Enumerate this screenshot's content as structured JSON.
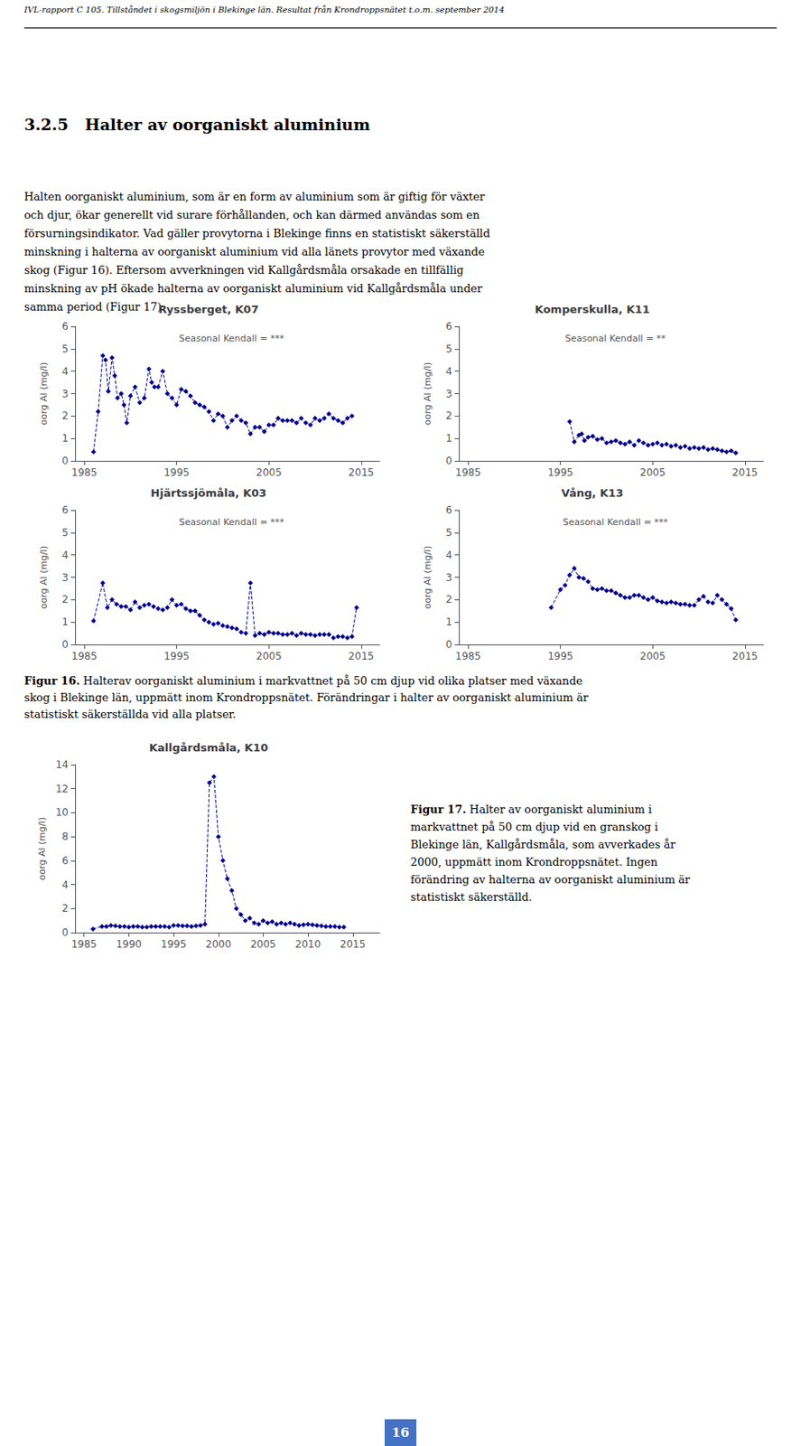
{
  "page_header": "IVL-rapport C 105. Tillståndet i skogsmiljön i Blekinge län. Resultat från Krondroppsnätet t.o.m. september 2014",
  "section_title": "3.2.5   Halter av oorganiskt aluminium",
  "body_lines": [
    "Halten oorganiskt aluminium, som är en form av aluminium som är giftig för växter",
    "och djur, ökar generellt vid surare förhållanden, och kan därmed användas som en",
    "försurningsindikator. Vad gäller provytorna i Blekinge finns en statistiskt säkerställd",
    "minskning i halterna av oorganiskt aluminium vid alla länets provytor med växande",
    "skog (Figur 16). Eftersom avverkningen vid Kallgårdsmåla orsakade en tillfällig",
    "minskning av pH ökade halterna av oorganiskt aluminium vid Kallgårdsmåla under",
    "samma period (Figur 17)."
  ],
  "chart_data": [
    {
      "type": "line",
      "title": "Ryssberget, K07",
      "annotation": "Seasonal Kendall = ***",
      "ylabel": "oorg Al (mg/l)",
      "color": "#00008B",
      "marker": "diamond",
      "line_style": "dashed",
      "grid": false,
      "xlim": [
        1984,
        2017
      ],
      "xticks": [
        1985,
        1995,
        2005,
        2015
      ],
      "ylim": [
        0,
        6
      ],
      "yticks": [
        0,
        1,
        2,
        3,
        4,
        5,
        6
      ],
      "x": [
        1986.0,
        1986.5,
        1987.0,
        1987.3,
        1987.6,
        1988.0,
        1988.3,
        1988.6,
        1989.0,
        1989.3,
        1989.6,
        1990.0,
        1990.5,
        1991.0,
        1991.5,
        1992.0,
        1992.3,
        1992.6,
        1993.0,
        1993.5,
        1994.0,
        1994.5,
        1995.0,
        1995.5,
        1996.0,
        1996.5,
        1997.0,
        1997.5,
        1998.0,
        1998.5,
        1999.0,
        1999.5,
        2000.0,
        2000.5,
        2001.0,
        2001.5,
        2002.0,
        2002.5,
        2003.0,
        2003.5,
        2004.0,
        2004.5,
        2005.0,
        2005.5,
        2006.0,
        2006.5,
        2007.0,
        2007.5,
        2008.0,
        2008.5,
        2009.0,
        2009.5,
        2010.0,
        2010.5,
        2011.0,
        2011.5,
        2012.0,
        2012.5,
        2013.0,
        2013.5,
        2014.0
      ],
      "values": [
        0.4,
        2.2,
        4.7,
        4.5,
        3.1,
        4.6,
        3.8,
        2.8,
        3.0,
        2.5,
        1.7,
        2.9,
        3.3,
        2.6,
        2.8,
        4.1,
        3.5,
        3.3,
        3.3,
        4.0,
        3.0,
        2.8,
        2.5,
        3.2,
        3.1,
        2.9,
        2.6,
        2.5,
        2.4,
        2.2,
        1.8,
        2.1,
        2.0,
        1.5,
        1.8,
        2.0,
        1.8,
        1.7,
        1.2,
        1.5,
        1.5,
        1.3,
        1.6,
        1.6,
        1.9,
        1.8,
        1.8,
        1.8,
        1.7,
        1.9,
        1.7,
        1.6,
        1.9,
        1.8,
        1.9,
        2.1,
        1.9,
        1.8,
        1.7,
        1.9,
        2.0
      ]
    },
    {
      "type": "line",
      "title": "Komperskulla, K11",
      "annotation": "Seasonal Kendall = **",
      "ylabel": "oorg Al (mg/l)",
      "color": "#00008B",
      "marker": "diamond",
      "line_style": "dashed",
      "grid": false,
      "xlim": [
        1984,
        2017
      ],
      "xticks": [
        1985,
        1995,
        2005,
        2015
      ],
      "ylim": [
        0,
        6
      ],
      "yticks": [
        0,
        1,
        2,
        3,
        4,
        5,
        6
      ],
      "x": [
        1996.0,
        1996.5,
        1997.0,
        1997.3,
        1997.6,
        1998.0,
        1998.5,
        1999.0,
        1999.5,
        2000.0,
        2000.5,
        2001.0,
        2001.5,
        2002.0,
        2002.5,
        2003.0,
        2003.5,
        2004.0,
        2004.5,
        2005.0,
        2005.5,
        2006.0,
        2006.5,
        2007.0,
        2007.5,
        2008.0,
        2008.5,
        2009.0,
        2009.5,
        2010.0,
        2010.5,
        2011.0,
        2011.5,
        2012.0,
        2012.5,
        2013.0,
        2013.5,
        2014.0
      ],
      "values": [
        1.75,
        0.85,
        1.15,
        1.2,
        0.9,
        1.05,
        1.1,
        0.95,
        1.0,
        0.8,
        0.85,
        0.9,
        0.8,
        0.75,
        0.85,
        0.7,
        0.9,
        0.8,
        0.7,
        0.75,
        0.8,
        0.7,
        0.75,
        0.65,
        0.7,
        0.6,
        0.65,
        0.55,
        0.6,
        0.55,
        0.6,
        0.5,
        0.55,
        0.5,
        0.45,
        0.4,
        0.45,
        0.35
      ]
    },
    {
      "type": "line",
      "title": "Hjärtssjömåla, K03",
      "annotation": "Seasonal Kendall = ***",
      "ylabel": "oorg Al (mg/l)",
      "color": "#00008B",
      "marker": "diamond",
      "line_style": "dashed",
      "grid": false,
      "xlim": [
        1984,
        2017
      ],
      "xticks": [
        1985,
        1995,
        2005,
        2015
      ],
      "ylim": [
        0,
        6
      ],
      "yticks": [
        0,
        1,
        2,
        3,
        4,
        5,
        6
      ],
      "x": [
        1986.0,
        1987.0,
        1987.5,
        1988.0,
        1988.5,
        1989.0,
        1989.5,
        1990.0,
        1990.5,
        1991.0,
        1991.5,
        1992.0,
        1992.5,
        1993.0,
        1993.5,
        1994.0,
        1994.5,
        1995.0,
        1995.5,
        1996.0,
        1996.5,
        1997.0,
        1997.5,
        1998.0,
        1998.5,
        1999.0,
        1999.5,
        2000.0,
        2000.5,
        2001.0,
        2001.5,
        2002.0,
        2002.5,
        2003.0,
        2003.5,
        2004.0,
        2004.5,
        2005.0,
        2005.5,
        2006.0,
        2006.5,
        2007.0,
        2007.5,
        2008.0,
        2008.5,
        2009.0,
        2009.5,
        2010.0,
        2010.5,
        2011.0,
        2011.5,
        2012.0,
        2012.5,
        2013.0,
        2013.5,
        2014.0,
        2014.5
      ],
      "values": [
        1.05,
        2.75,
        1.65,
        2.0,
        1.8,
        1.7,
        1.7,
        1.55,
        1.9,
        1.65,
        1.75,
        1.8,
        1.7,
        1.6,
        1.55,
        1.65,
        2.0,
        1.75,
        1.8,
        1.6,
        1.5,
        1.5,
        1.3,
        1.1,
        1.0,
        0.9,
        0.95,
        0.85,
        0.8,
        0.75,
        0.7,
        0.55,
        0.5,
        2.75,
        0.4,
        0.5,
        0.45,
        0.55,
        0.5,
        0.5,
        0.45,
        0.45,
        0.5,
        0.4,
        0.5,
        0.45,
        0.45,
        0.4,
        0.45,
        0.45,
        0.45,
        0.3,
        0.35,
        0.35,
        0.3,
        0.35,
        1.65
      ]
    },
    {
      "type": "line",
      "title": "Vång, K13",
      "annotation": "Seasonal Kendall = ***",
      "ylabel": "oorg Al (mg/l)",
      "color": "#00008B",
      "marker": "diamond",
      "line_style": "dashed",
      "grid": false,
      "xlim": [
        1984,
        2017
      ],
      "xticks": [
        1985,
        1995,
        2005,
        2015
      ],
      "ylim": [
        0,
        6
      ],
      "yticks": [
        0,
        1,
        2,
        3,
        4,
        5,
        6
      ],
      "x": [
        1994.0,
        1995.0,
        1995.5,
        1996.0,
        1996.5,
        1997.0,
        1997.5,
        1998.0,
        1998.5,
        1999.0,
        1999.5,
        2000.0,
        2000.5,
        2001.0,
        2001.5,
        2002.0,
        2002.5,
        2003.0,
        2003.5,
        2004.0,
        2004.5,
        2005.0,
        2005.5,
        2006.0,
        2006.5,
        2007.0,
        2007.5,
        2008.0,
        2008.5,
        2009.0,
        2009.5,
        2010.0,
        2010.5,
        2011.0,
        2011.5,
        2012.0,
        2012.5,
        2013.0,
        2013.5,
        2014.0
      ],
      "values": [
        1.65,
        2.45,
        2.65,
        3.1,
        3.4,
        3.0,
        2.95,
        2.8,
        2.5,
        2.45,
        2.5,
        2.4,
        2.4,
        2.3,
        2.2,
        2.1,
        2.1,
        2.2,
        2.2,
        2.1,
        2.0,
        2.1,
        1.95,
        1.9,
        1.85,
        1.9,
        1.85,
        1.8,
        1.8,
        1.75,
        1.75,
        2.0,
        2.15,
        1.9,
        1.85,
        2.2,
        2.0,
        1.8,
        1.6,
        1.1
      ]
    },
    {
      "type": "line",
      "title": "Kallgårdsmåla, K10",
      "ylabel": "oorg Al (mg/l)",
      "color": "#00008B",
      "marker": "diamond",
      "line_style": "dashed",
      "grid": false,
      "xlim": [
        1984,
        2018
      ],
      "xticks": [
        1985,
        1990,
        1995,
        2000,
        2005,
        2010,
        2015
      ],
      "ylim": [
        0,
        14
      ],
      "yticks": [
        0,
        2,
        4,
        6,
        8,
        10,
        12,
        14
      ],
      "x": [
        1986.0,
        1987.0,
        1987.5,
        1988.0,
        1988.5,
        1989.0,
        1989.5,
        1990.0,
        1990.5,
        1991.0,
        1991.5,
        1992.0,
        1992.5,
        1993.0,
        1993.5,
        1994.0,
        1994.5,
        1995.0,
        1995.5,
        1996.0,
        1996.5,
        1997.0,
        1997.5,
        1998.0,
        1998.5,
        1999.0,
        1999.5,
        2000.0,
        2000.5,
        2001.0,
        2001.5,
        2002.0,
        2002.5,
        2003.0,
        2003.5,
        2004.0,
        2004.5,
        2005.0,
        2005.5,
        2006.0,
        2006.5,
        2007.0,
        2007.5,
        2008.0,
        2008.5,
        2009.0,
        2009.5,
        2010.0,
        2010.5,
        2011.0,
        2011.5,
        2012.0,
        2012.5,
        2013.0,
        2013.5,
        2014.0
      ],
      "values": [
        0.3,
        0.5,
        0.5,
        0.6,
        0.55,
        0.5,
        0.5,
        0.45,
        0.5,
        0.5,
        0.45,
        0.45,
        0.5,
        0.5,
        0.5,
        0.5,
        0.45,
        0.6,
        0.6,
        0.55,
        0.55,
        0.5,
        0.55,
        0.6,
        0.7,
        12.5,
        13.0,
        8.0,
        6.0,
        4.5,
        3.5,
        2.0,
        1.5,
        1.0,
        1.2,
        0.8,
        0.7,
        1.0,
        0.8,
        0.9,
        0.7,
        0.8,
        0.7,
        0.8,
        0.7,
        0.6,
        0.65,
        0.7,
        0.65,
        0.6,
        0.55,
        0.5,
        0.5,
        0.5,
        0.45,
        0.45
      ]
    }
  ],
  "captions": [
    {
      "label": "Figur 16.",
      "lines": [
        "Halterav oorganiskt aluminium i markvattnet på 50 cm djup vid olika platser med växande",
        "skog i Blekinge län, uppmätt inom Krondroppsnätet. Förändringar i halter av oorganiskt aluminium är",
        "statistiskt säkerställda vid alla platser."
      ]
    },
    {
      "label": "Figur 17.",
      "lines": [
        "Halter av oorganiskt aluminium i",
        "markvattnet på 50 cm djup vid en granskog i",
        "Blekinge län, Kallgårdsmåla, som avverkades år",
        "2000, uppmätt inom Krondroppsnätet. Ingen",
        "förändring av halterna av oorganiskt aluminium är",
        "statistiskt säkerställd."
      ]
    }
  ],
  "page_number": "16"
}
